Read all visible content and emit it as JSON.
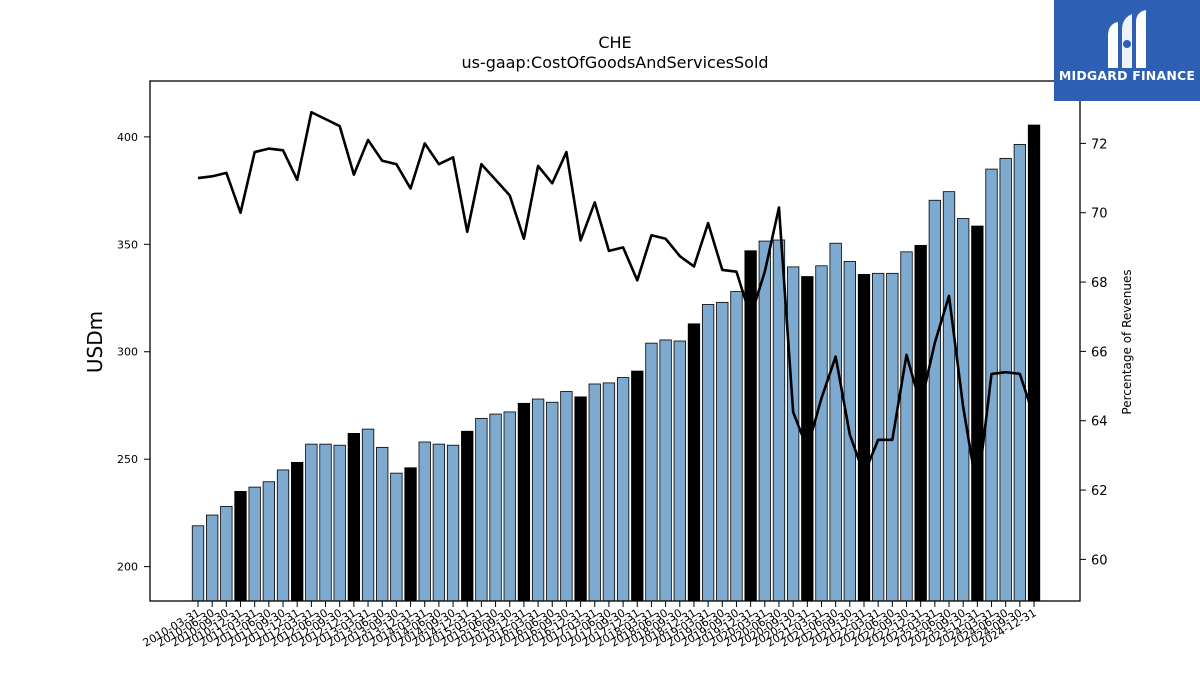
{
  "chart_data": {
    "type": "bar",
    "title": "CHE",
    "subtitle": "us-gaap:CostOfGoodsAndServicesSold",
    "ylabel": "USDm",
    "y2label": "Percentage of Revenues",
    "ylim": [
      184,
      426
    ],
    "y2lim": [
      58.8,
      73.8
    ],
    "yticks": [
      200,
      250,
      300,
      350,
      400
    ],
    "y2ticks": [
      60,
      62,
      64,
      66,
      68,
      70,
      72
    ],
    "categories": [
      "2010-03-31",
      "2010-06-30",
      "2010-09-30",
      "2010-12-31",
      "2011-03-31",
      "2011-06-30",
      "2011-09-30",
      "2011-12-31",
      "2012-03-31",
      "2012-06-30",
      "2012-09-30",
      "2012-12-31",
      "2013-03-31",
      "2013-06-30",
      "2013-09-30",
      "2013-12-31",
      "2014-03-31",
      "2014-06-30",
      "2014-09-30",
      "2014-12-31",
      "2015-03-31",
      "2015-06-30",
      "2015-09-30",
      "2015-12-31",
      "2016-03-31",
      "2016-06-30",
      "2016-09-30",
      "2016-12-31",
      "2017-03-31",
      "2017-06-30",
      "2017-09-30",
      "2017-12-31",
      "2018-03-31",
      "2018-06-30",
      "2018-09-30",
      "2018-12-31",
      "2019-03-31",
      "2019-06-30",
      "2019-09-30",
      "2019-12-31",
      "2020-03-31",
      "2020-06-30",
      "2020-09-30",
      "2020-12-31",
      "2021-03-31",
      "2021-06-30",
      "2021-09-30",
      "2021-12-31",
      "2022-03-31",
      "2022-06-30",
      "2022-09-30",
      "2022-12-31",
      "2023-03-31",
      "2023-06-30",
      "2023-09-30",
      "2023-12-31",
      "2024-03-31",
      "2024-06-30",
      "2024-09-30",
      "2024-12-31"
    ],
    "series": [
      {
        "kind": "bar",
        "values": [
          219,
          224,
          228,
          235,
          237,
          239.5,
          245,
          248.5,
          257,
          257,
          256.5,
          262,
          264,
          255.5,
          243.5,
          246,
          258,
          257,
          256.5,
          263,
          269,
          271,
          272,
          276,
          278,
          276.5,
          281.5,
          279,
          285,
          285.5,
          288,
          291,
          304,
          305.5,
          305,
          313,
          322,
          323,
          328,
          347,
          351.5,
          352,
          339.5,
          335,
          340,
          350.5,
          342,
          336,
          336.5,
          336.5,
          346.5,
          349.5,
          370.5,
          374.5,
          362,
          358.5,
          385,
          390,
          396.5,
          405.5
        ],
        "highlight_color": "#000000",
        "color": "#7eaad0"
      },
      {
        "kind": "line",
        "axis": "right",
        "values": [
          71.0,
          71.05,
          71.15,
          70.0,
          71.75,
          71.85,
          71.8,
          70.95,
          72.9,
          72.7,
          72.5,
          71.1,
          72.1,
          71.5,
          71.4,
          70.7,
          72.0,
          71.4,
          71.6,
          69.45,
          71.4,
          70.95,
          70.5,
          69.25,
          71.35,
          70.85,
          71.75,
          69.2,
          70.3,
          68.9,
          69.0,
          68.05,
          69.35,
          69.25,
          68.75,
          68.45,
          69.7,
          68.35,
          68.3,
          67.0,
          68.3,
          70.15,
          64.25,
          63.2,
          64.65,
          65.85,
          63.6,
          62.45,
          63.45,
          63.45,
          65.9,
          64.45,
          66.25,
          67.6,
          64.4,
          61.95,
          65.35,
          65.4,
          65.35,
          64.1
        ],
        "color": "#000000"
      }
    ],
    "highlight_indices": [
      3,
      7,
      11,
      15,
      19,
      23,
      27,
      31,
      35,
      39,
      43,
      47,
      51,
      55,
      59
    ],
    "grid": false,
    "legend": "none"
  },
  "logo": {
    "text": "MIDGARD FINANCE",
    "bg_color": "#2d5fb3"
  }
}
